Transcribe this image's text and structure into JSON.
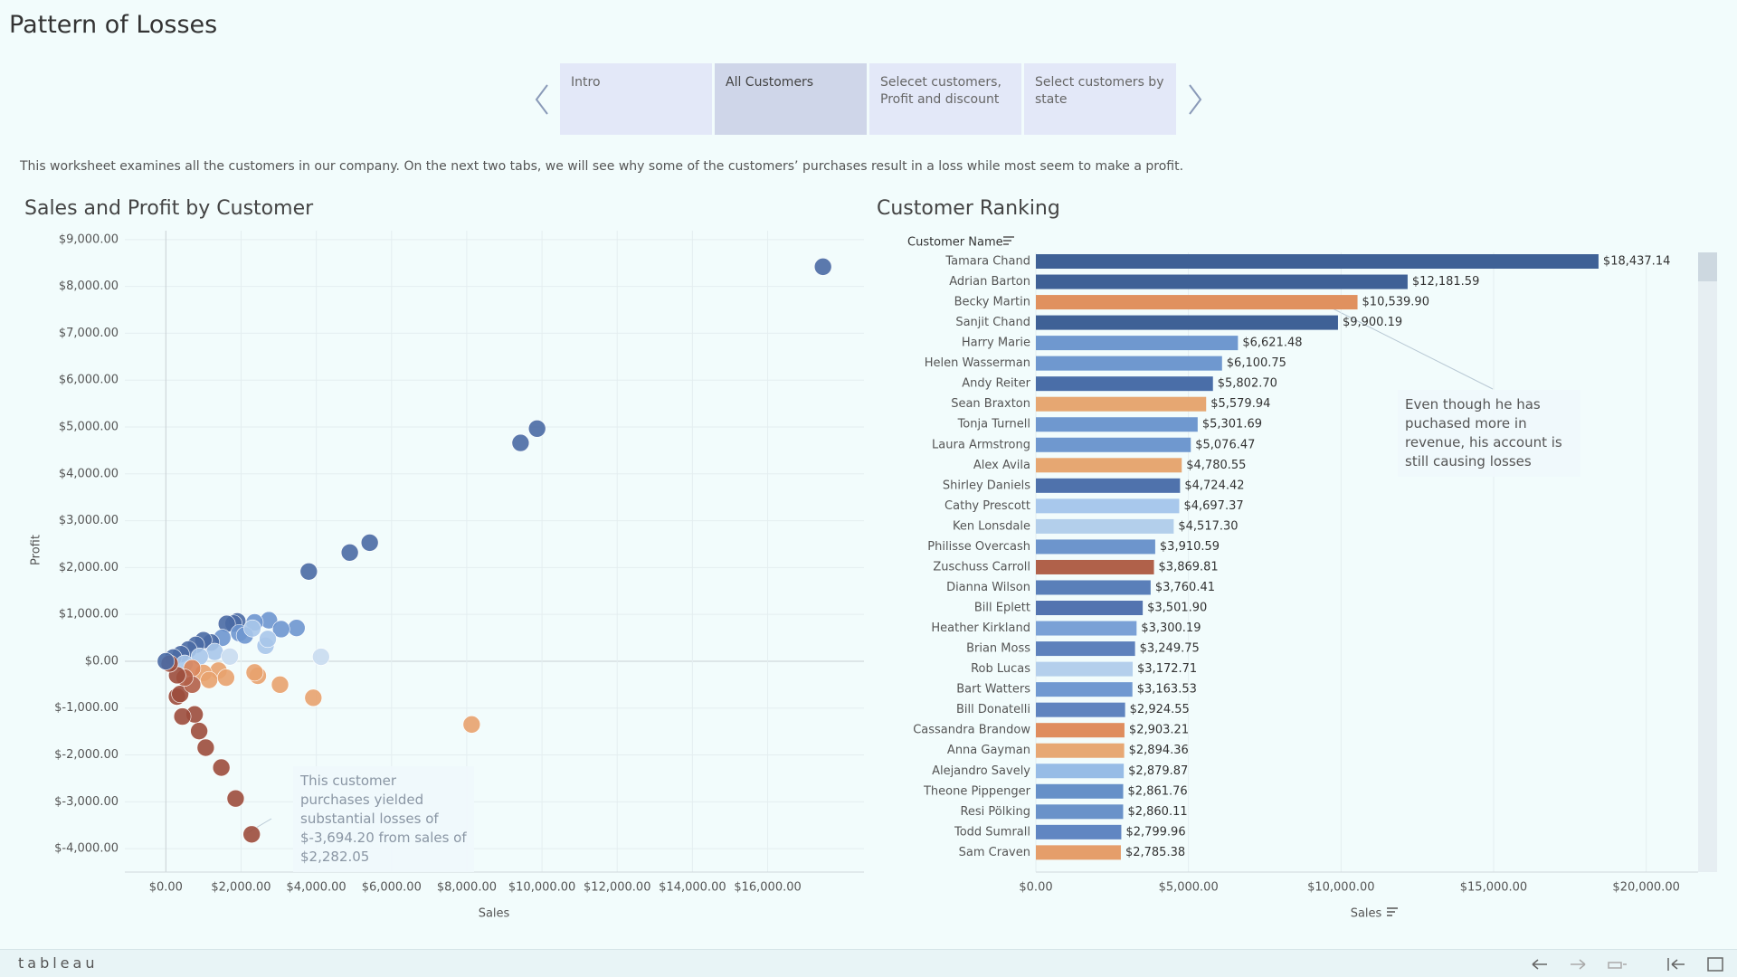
{
  "title": "Pattern of Losses",
  "tabs": [
    "Intro",
    "All Customers",
    "Selecet customers, Profit and discount",
    "Select customers by state"
  ],
  "description": "This worksheet examines all the customers in our company. On the next two tabs, we will see why some of the customers’ purchases result in a loss while most seem to make a profit.",
  "brand": "tableau",
  "chart_data": [
    {
      "type": "scatter",
      "title": "Sales and Profit by Customer",
      "x_label": "Sales",
      "y_label": "Profit",
      "annotation": "This customer purchases yielded substantial losses of $-3,694.20 from sales of $2,282.05",
      "x": [
        17470,
        9870,
        9430,
        5420,
        4890,
        3800,
        4125,
        8130,
        3920,
        3035,
        2445,
        2360,
        2282.05,
        1855,
        1475,
        1060,
        885,
        765,
        440,
        295,
        380,
        3475,
        2740,
        3065,
        2650,
        2710,
        2360,
        1900,
        1800,
        1620,
        1950,
        1500,
        1200,
        1000,
        800,
        600,
        400,
        200,
        1300,
        1700,
        900,
        500,
        1400,
        1000,
        700,
        1150,
        700,
        500,
        300,
        100,
        0,
        1600,
        2100,
        2300
      ],
      "values": [
        8420,
        4965,
        4660,
        2530,
        2320,
        1915,
        95,
        -1350,
        -780,
        -500,
        -310,
        -240,
        -3694.2,
        -2930,
        -2270,
        -1845,
        -1490,
        -1135,
        -1180,
        -755,
        -700,
        710,
        875,
        685,
        330,
        475,
        830,
        850,
        805,
        800,
        600,
        500,
        400,
        450,
        350,
        250,
        150,
        80,
        200,
        100,
        100,
        -50,
        -200,
        -250,
        -150,
        -400,
        -500,
        -350,
        -300,
        -50,
        0,
        -350,
        550,
        700
      ],
      "colors": [
        "#4a6aa4",
        "#4a6aa4",
        "#4a6aa4",
        "#4a6aa4",
        "#4a6aa4",
        "#4a6aa4",
        "#c9dcef",
        "#e8a26e",
        "#e8a26e",
        "#e8a26e",
        "#e8a26e",
        "#e8a26e",
        "#9c4c3c",
        "#9c4c3c",
        "#9c4c3c",
        "#9c4c3c",
        "#9c4c3c",
        "#9c4c3c",
        "#9c4c3c",
        "#9c4c3c",
        "#9c4c3c",
        "#6e96cf",
        "#6e96cf",
        "#6e96cf",
        "#a9c7ea",
        "#a9c7ea",
        "#6e96cf",
        "#4a6aa4",
        "#4a6aa4",
        "#4a6aa4",
        "#6e96cf",
        "#6e96cf",
        "#4a6aa4",
        "#4a6aa4",
        "#4a6aa4",
        "#4a6aa4",
        "#4a6aa4",
        "#4a6aa4",
        "#a9c7ea",
        "#c9dcef",
        "#a9c7ea",
        "#a9c7ea",
        "#e8a26e",
        "#e8a26e",
        "#d9845a",
        "#e8a26e",
        "#b35f48",
        "#b35f48",
        "#9c4c3c",
        "#9c4c3c",
        "#4a6aa4",
        "#e8a26e",
        "#6e96cf",
        "#a9c7ea"
      ],
      "xlim": [
        -1090,
        18560
      ],
      "ylim": [
        -4500,
        9190
      ],
      "xticks": [
        {
          "value": 0,
          "label": "$0.00"
        },
        {
          "value": 2000,
          "label": "$2,000.00"
        },
        {
          "value": 4000,
          "label": "$4,000.00"
        },
        {
          "value": 6000,
          "label": "$6,000.00"
        },
        {
          "value": 8000,
          "label": "$8,000.00"
        },
        {
          "value": 10000,
          "label": "$10,000.00"
        },
        {
          "value": 12000,
          "label": "$12,000.00"
        },
        {
          "value": 14000,
          "label": "$14,000.00"
        },
        {
          "value": 16000,
          "label": "$16,000.00"
        }
      ],
      "yticks": [
        {
          "value": -4000,
          "label": "$-4,000.00"
        },
        {
          "value": -3000,
          "label": "$-3,000.00"
        },
        {
          "value": -2000,
          "label": "$-2,000.00"
        },
        {
          "value": -1000,
          "label": "$-1,000.00"
        },
        {
          "value": 0,
          "label": "$0.00"
        },
        {
          "value": 1000,
          "label": "$1,000.00"
        },
        {
          "value": 2000,
          "label": "$2,000.00"
        },
        {
          "value": 3000,
          "label": "$3,000.00"
        },
        {
          "value": 4000,
          "label": "$4,000.00"
        },
        {
          "value": 5000,
          "label": "$5,000.00"
        },
        {
          "value": 6000,
          "label": "$6,000.00"
        },
        {
          "value": 7000,
          "label": "$7,000.00"
        },
        {
          "value": 8000,
          "label": "$8,000.00"
        },
        {
          "value": 9000,
          "label": "$9,000.00"
        }
      ],
      "grid": true
    },
    {
      "type": "bar",
      "title": "Customer Ranking",
      "category_label": "Customer Name",
      "x_label": "Sales",
      "annotation": "Even though he has puchased more in revenue, his account is still causing losses",
      "categories": [
        "Tamara Chand",
        "Adrian Barton",
        "Becky Martin",
        "Sanjit Chand",
        "Harry Marie",
        "Helen Wasserman",
        "Andy Reiter",
        "Sean Braxton",
        "Tonja Turnell",
        "Laura Armstrong",
        "Alex Avila",
        "Shirley Daniels",
        "Cathy Prescott",
        "Ken Lonsdale",
        "Philisse Overcash",
        "Zuschuss Carroll",
        "Dianna Wilson",
        "Bill Eplett",
        "Heather Kirkland",
        "Brian Moss",
        "Rob Lucas",
        "Bart Watters",
        "Bill Donatelli",
        "Cassandra Brandow",
        "Anna Gayman",
        "Alejandro Savely",
        "Theone Pippenger",
        "Resi Pölking",
        "Todd Sumrall",
        "Sam Craven"
      ],
      "values": [
        18437.14,
        12181.59,
        10539.9,
        9900.19,
        6621.48,
        6100.75,
        5802.7,
        5579.94,
        5301.69,
        5076.47,
        4780.55,
        4724.42,
        4697.37,
        4517.3,
        3910.59,
        3869.81,
        3760.41,
        3501.9,
        3300.19,
        3249.75,
        3172.71,
        3163.53,
        2924.55,
        2903.21,
        2894.36,
        2879.87,
        2861.76,
        2860.11,
        2799.96,
        2785.38
      ],
      "value_labels": [
        "$18,437.14",
        "$12,181.59",
        "$10,539.90",
        "$9,900.19",
        "$6,621.48",
        "$6,100.75",
        "$5,802.70",
        "$5,579.94",
        "$5,301.69",
        "$5,076.47",
        "$4,780.55",
        "$4,724.42",
        "$4,697.37",
        "$4,517.30",
        "$3,910.59",
        "$3,869.81",
        "$3,760.41",
        "$3,501.90",
        "$3,300.19",
        "$3,249.75",
        "$3,172.71",
        "$3,163.53",
        "$2,924.55",
        "$2,903.21",
        "$2,894.36",
        "$2,879.87",
        "$2,861.76",
        "$2,860.11",
        "$2,799.96",
        "$2,785.38"
      ],
      "colors": [
        "#3f6196",
        "#3f6196",
        "#e0915f",
        "#3f6196",
        "#6f98cf",
        "#6f98cf",
        "#4a6ea8",
        "#e6a772",
        "#6f98cf",
        "#6f98cf",
        "#e6a772",
        "#4f72ac",
        "#a8c8ec",
        "#b3cfeb",
        "#6d95cc",
        "#b0614a",
        "#5a7fb9",
        "#5374b0",
        "#7aa1d6",
        "#5d81bc",
        "#b4cfec",
        "#7099d1",
        "#5f84bf",
        "#df8d5e",
        "#e7a874",
        "#97bce6",
        "#6690c8",
        "#6a92c9",
        "#6086c2",
        "#e59e6a"
      ],
      "xlim": [
        0,
        21700
      ],
      "xticks": [
        {
          "value": 0,
          "label": "$0.00"
        },
        {
          "value": 5000,
          "label": "$5,000.00"
        },
        {
          "value": 10000,
          "label": "$10,000.00"
        },
        {
          "value": 15000,
          "label": "$15,000.00"
        },
        {
          "value": 20000,
          "label": "$20,000.00"
        }
      ],
      "grid": true
    }
  ]
}
